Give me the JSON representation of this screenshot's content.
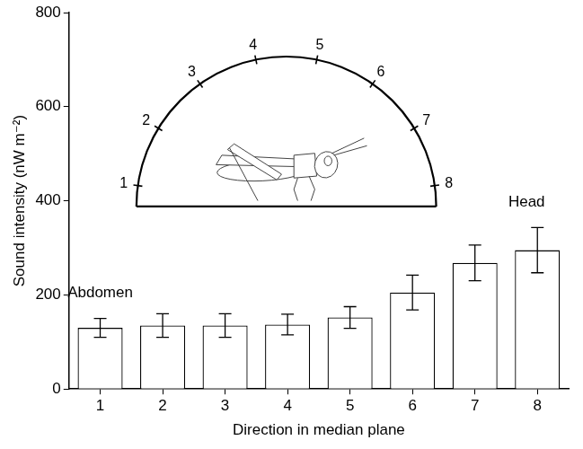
{
  "chart_data": {
    "type": "bar",
    "x_label": "Direction in median plane",
    "y_label": "Sound intensity (nW m⁻²)",
    "categories": [
      "1",
      "2",
      "3",
      "4",
      "5",
      "6",
      "7",
      "8"
    ],
    "values": [
      130,
      135,
      135,
      137,
      152,
      205,
      268,
      295
    ],
    "errors": [
      20,
      25,
      25,
      22,
      23,
      37,
      38,
      48
    ],
    "color": "#ffffff",
    "ylim": [
      0,
      800
    ],
    "yticks": [
      0,
      200,
      400,
      600,
      800
    ],
    "grid": false,
    "annotations": [
      "Abdomen",
      "Head"
    ],
    "inset_labels": [
      "1",
      "2",
      "3",
      "4",
      "5",
      "6",
      "7",
      "8"
    ]
  }
}
